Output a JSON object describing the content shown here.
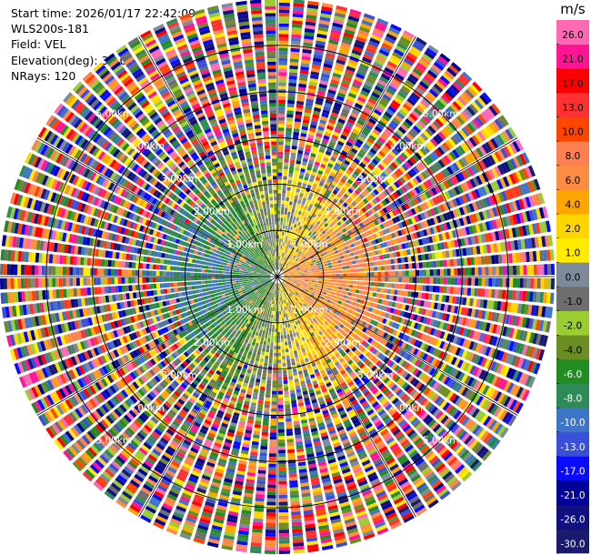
{
  "header": {
    "start_time": "Start time: 2026/01/17 22:42:09",
    "instrument": "WLS200s-181",
    "field": "Field: VEL",
    "elevation": "Elevation(deg): 35.00",
    "nrays": "NRays: 120"
  },
  "chart_data": {
    "type": "heatmap",
    "projection": "polar (PPI scan)",
    "title": "",
    "field": "VEL",
    "elevation_deg": 35.0,
    "n_rays": 120,
    "max_range_km": 6.0,
    "range_rings_km": [
      1,
      2,
      3,
      4,
      5
    ],
    "ring_label_format": "{r}.00km",
    "ring_label_bearings_deg": [
      45,
      135,
      225,
      315
    ],
    "spoke_bearings_deg": [
      0,
      30,
      60,
      90,
      120,
      150,
      180,
      210,
      240,
      270,
      300,
      330
    ],
    "pattern_summary": {
      "inner_east_dominant_ms": [
        2.0,
        10.0
      ],
      "inner_west_dominant_ms": [
        -8.0,
        -1.0
      ],
      "noise_beyond_km": 3.0
    },
    "colorbar": {
      "unit": "m/s",
      "tick_labels": [
        "26.0",
        "21.0",
        "17.0",
        "13.0",
        "10.0",
        "8.0",
        "6.0",
        "4.0",
        "2.0",
        "1.0",
        "0.0",
        "-1.0",
        "-2.0",
        "-4.0",
        "-6.0",
        "-8.0",
        "-10.0",
        "-13.0",
        "-17.0",
        "-21.0",
        "-26.0",
        "-30.0"
      ],
      "levels": [
        -30,
        -26,
        -21,
        -17,
        -13,
        -10,
        -8,
        -6,
        -4,
        -2,
        -1,
        0,
        1,
        2,
        4,
        6,
        8,
        10,
        13,
        17,
        21,
        26,
        30
      ],
      "colors": [
        "#1a1a6e",
        "#101080",
        "#000099",
        "#0a0aff",
        "#3a4fd8",
        "#3f75c8",
        "#2e8b57",
        "#228b22",
        "#6b8e23",
        "#9acd32",
        "#6e6e6e",
        "#7d8a99",
        "#ffeb00",
        "#ffd500",
        "#ffa500",
        "#ff8c42",
        "#ff7f50",
        "#ff4500",
        "#ff3030",
        "#ff0000",
        "#ff1493",
        "#ff69b4"
      ]
    }
  }
}
